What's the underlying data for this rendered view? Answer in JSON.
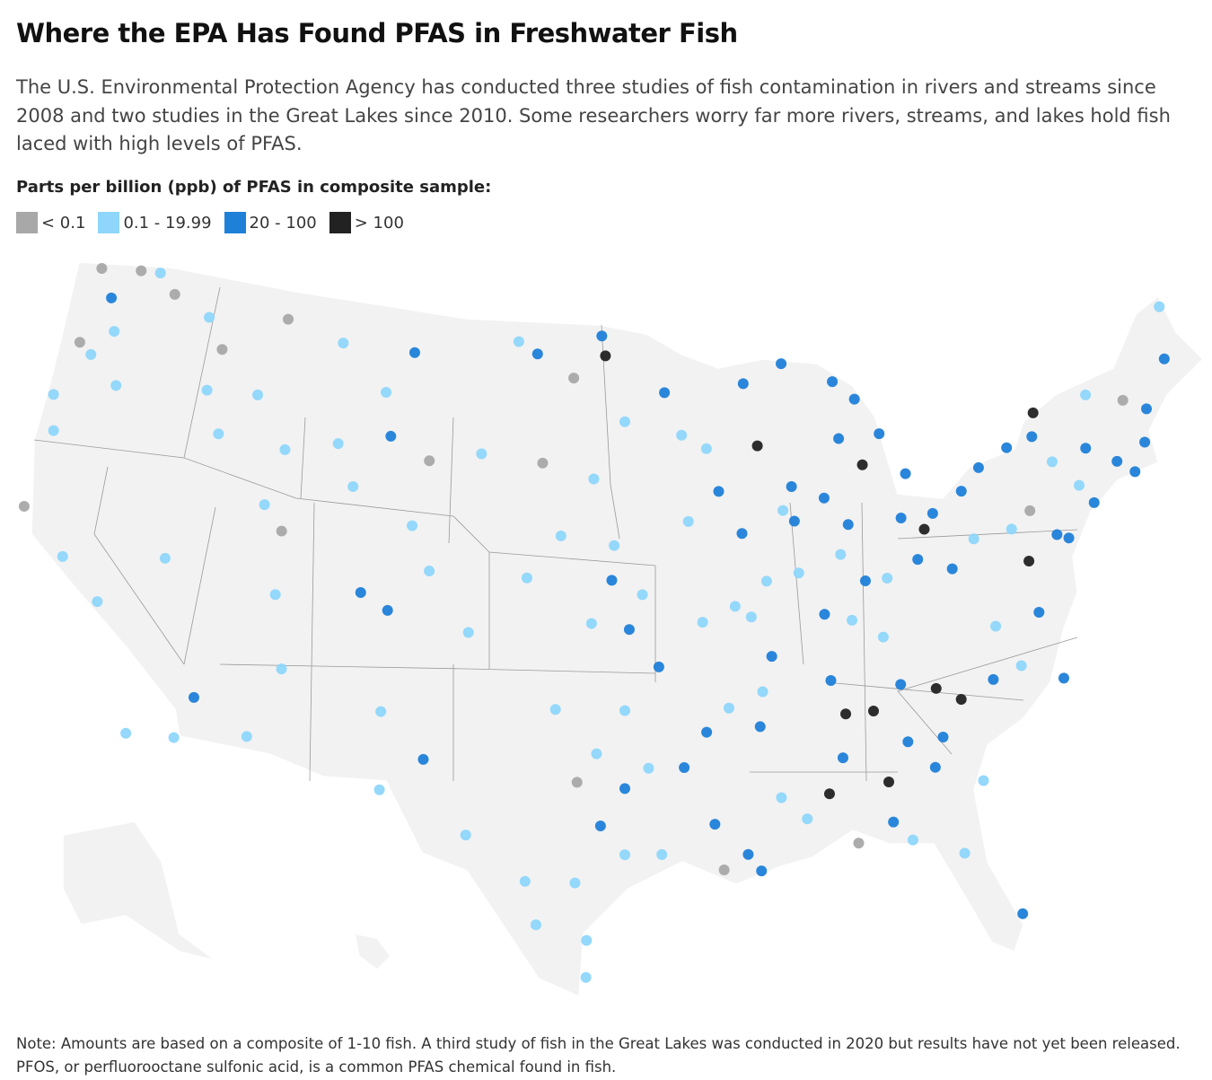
{
  "header": {
    "title": "Where the EPA Has Found PFAS in Freshwater Fish",
    "subtitle": "The U.S. Environmental Protection Agency has conducted three studies of fish contamination in rivers and streams since 2008 and two studies in the Great Lakes since 2010. Some researchers worry far more rivers, streams, and lakes hold fish laced with high levels of PFAS."
  },
  "legend": {
    "title": "Parts per billion (ppb) of PFAS in composite sample:",
    "items": [
      {
        "label": "< 0.1",
        "color": "#a8a8a8"
      },
      {
        "label": "0.1 - 19.99",
        "color": "#8ed6fb"
      },
      {
        "label": "20 - 100",
        "color": "#1f80d8"
      },
      {
        "label": "> 100",
        "color": "#222222"
      }
    ]
  },
  "map": {
    "sites": [
      {
        "lon": -123.5,
        "lat": 48.2,
        "level": 0
      },
      {
        "lon": -122.6,
        "lat": 47.3,
        "level": 2
      },
      {
        "lon": -121.5,
        "lat": 48.5,
        "level": 0
      },
      {
        "lon": -120.5,
        "lat": 48.6,
        "level": 1
      },
      {
        "lon": -119.5,
        "lat": 48.0,
        "level": 0
      },
      {
        "lon": -122,
        "lat": 46.2,
        "level": 1
      },
      {
        "lon": -123.5,
        "lat": 45.5,
        "level": 0
      },
      {
        "lon": -122.8,
        "lat": 45.2,
        "level": 1
      },
      {
        "lon": -124,
        "lat": 43.5,
        "level": 1
      },
      {
        "lon": -121.2,
        "lat": 44.4,
        "level": 1
      },
      {
        "lon": -123.5,
        "lat": 42.3,
        "level": 1
      },
      {
        "lon": -117.5,
        "lat": 47.5,
        "level": 1
      },
      {
        "lon": -116.5,
        "lat": 46.5,
        "level": 0
      },
      {
        "lon": -116.8,
        "lat": 45.0,
        "level": 1
      },
      {
        "lon": -114.3,
        "lat": 45.2,
        "level": 1
      },
      {
        "lon": -115.8,
        "lat": 43.6,
        "level": 1
      },
      {
        "lon": -112.5,
        "lat": 43.5,
        "level": 1
      },
      {
        "lon": -123.8,
        "lat": 39.5,
        "level": 0
      },
      {
        "lon": -121.5,
        "lat": 38.2,
        "level": 1
      },
      {
        "lon": -119.5,
        "lat": 37,
        "level": 1
      },
      {
        "lon": -117,
        "lat": 32.8,
        "level": 1
      },
      {
        "lon": -115,
        "lat": 33,
        "level": 1
      },
      {
        "lon": -117,
        "lat": 39,
        "level": 1
      },
      {
        "lon": -112,
        "lat": 40.7,
        "level": 0
      },
      {
        "lon": -111.8,
        "lat": 38.5,
        "level": 1
      },
      {
        "lon": -111,
        "lat": 36,
        "level": 1
      },
      {
        "lon": -112,
        "lat": 33.5,
        "level": 1
      },
      {
        "lon": -114.5,
        "lat": 34.5,
        "level": 2
      },
      {
        "lon": -113,
        "lat": 41.5,
        "level": 1
      },
      {
        "lon": -113.5,
        "lat": 48,
        "level": 0
      },
      {
        "lon": -110.5,
        "lat": 47.5,
        "level": 1
      },
      {
        "lon": -108,
        "lat": 46,
        "level": 1
      },
      {
        "lon": -106.8,
        "lat": 47.5,
        "level": 2
      },
      {
        "lon": -107.5,
        "lat": 44.5,
        "level": 2
      },
      {
        "lon": -105.5,
        "lat": 43.8,
        "level": 0
      },
      {
        "lon": -109,
        "lat": 42.6,
        "level": 1
      },
      {
        "lon": -106,
        "lat": 41.5,
        "level": 1
      },
      {
        "lon": -110,
        "lat": 44,
        "level": 1
      },
      {
        "lon": -108,
        "lat": 39,
        "level": 2
      },
      {
        "lon": -105,
        "lat": 40,
        "level": 1
      },
      {
        "lon": -106.7,
        "lat": 38.5,
        "level": 2
      },
      {
        "lon": -106.5,
        "lat": 35,
        "level": 1
      },
      {
        "lon": -104.5,
        "lat": 33.5,
        "level": 2
      },
      {
        "lon": -106.2,
        "lat": 32.3,
        "level": 1
      },
      {
        "lon": -103,
        "lat": 38,
        "level": 1
      },
      {
        "lon": -101.5,
        "lat": 48.2,
        "level": 1
      },
      {
        "lon": -100.5,
        "lat": 47.8,
        "level": 2
      },
      {
        "lon": -98.6,
        "lat": 47,
        "level": 0
      },
      {
        "lon": -97,
        "lat": 47.8,
        "level": 3
      },
      {
        "lon": -97.2,
        "lat": 48.5,
        "level": 2
      },
      {
        "lon": -100,
        "lat": 44,
        "level": 0
      },
      {
        "lon": -97.5,
        "lat": 43.5,
        "level": 1
      },
      {
        "lon": -103,
        "lat": 44.2,
        "level": 1
      },
      {
        "lon": -99,
        "lat": 41.5,
        "level": 1
      },
      {
        "lon": -96.5,
        "lat": 41.2,
        "level": 1
      },
      {
        "lon": -100.5,
        "lat": 40,
        "level": 1
      },
      {
        "lon": -97.5,
        "lat": 38.5,
        "level": 1
      },
      {
        "lon": -95.8,
        "lat": 38.3,
        "level": 2
      },
      {
        "lon": -95.2,
        "lat": 39.5,
        "level": 1
      },
      {
        "lon": -96.6,
        "lat": 40,
        "level": 2
      },
      {
        "lon": -99,
        "lat": 35.5,
        "level": 1
      },
      {
        "lon": -96,
        "lat": 35.5,
        "level": 1
      },
      {
        "lon": -97.2,
        "lat": 34,
        "level": 1
      },
      {
        "lon": -98,
        "lat": 33,
        "level": 0
      },
      {
        "lon": -95,
        "lat": 33.5,
        "level": 1
      },
      {
        "lon": -97,
        "lat": 31.5,
        "level": 2
      },
      {
        "lon": -96,
        "lat": 30.5,
        "level": 1
      },
      {
        "lon": -98,
        "lat": 29.5,
        "level": 1
      },
      {
        "lon": -99.5,
        "lat": 28,
        "level": 1
      },
      {
        "lon": -97.5,
        "lat": 27.5,
        "level": 1
      },
      {
        "lon": -100,
        "lat": 29.5,
        "level": 1
      },
      {
        "lon": -102.5,
        "lat": 31,
        "level": 1
      },
      {
        "lon": -96,
        "lat": 32.8,
        "level": 2
      },
      {
        "lon": -94.5,
        "lat": 30.5,
        "level": 1
      },
      {
        "lon": -97.5,
        "lat": 26.2,
        "level": 1
      },
      {
        "lon": -92.5,
        "lat": 34.7,
        "level": 2
      },
      {
        "lon": -93.5,
        "lat": 33.5,
        "level": 2
      },
      {
        "lon": -91.5,
        "lat": 35.5,
        "level": 1
      },
      {
        "lon": -92.3,
        "lat": 31.5,
        "level": 2
      },
      {
        "lon": -91,
        "lat": 30.4,
        "level": 2
      },
      {
        "lon": -90.5,
        "lat": 29.8,
        "level": 2
      },
      {
        "lon": -92,
        "lat": 29.9,
        "level": 0
      },
      {
        "lon": -89.5,
        "lat": 32.3,
        "level": 1
      },
      {
        "lon": -90.2,
        "lat": 34.8,
        "level": 2
      },
      {
        "lon": -90,
        "lat": 36,
        "level": 1
      },
      {
        "lon": -92.5,
        "lat": 38.5,
        "level": 1
      },
      {
        "lon": -90.3,
        "lat": 38.6,
        "level": 1
      },
      {
        "lon": -89.5,
        "lat": 37.2,
        "level": 2
      },
      {
        "lon": -94.5,
        "lat": 37,
        "level": 2
      },
      {
        "lon": -91,
        "lat": 39,
        "level": 1
      },
      {
        "lon": -88.5,
        "lat": 31.5,
        "level": 1
      },
      {
        "lon": -93.2,
        "lat": 45,
        "level": 1
      },
      {
        "lon": -92,
        "lat": 44.5,
        "level": 1
      },
      {
        "lon": -94,
        "lat": 46.5,
        "level": 2
      },
      {
        "lon": -96,
        "lat": 45.5,
        "level": 1
      },
      {
        "lon": -91.5,
        "lat": 43,
        "level": 2
      },
      {
        "lon": -93,
        "lat": 42,
        "level": 1
      },
      {
        "lon": -90.5,
        "lat": 41.5,
        "level": 2
      },
      {
        "lon": -88,
        "lat": 43,
        "level": 2
      },
      {
        "lon": -89.5,
        "lat": 44.5,
        "level": 3
      },
      {
        "lon": -88.5,
        "lat": 42.2,
        "level": 1
      },
      {
        "lon": -88,
        "lat": 40,
        "level": 1
      },
      {
        "lon": -89.5,
        "lat": 39.8,
        "level": 1
      },
      {
        "lon": -88,
        "lat": 41.8,
        "level": 2
      },
      {
        "lon": -90,
        "lat": 46.7,
        "level": 2
      },
      {
        "lon": -88,
        "lat": 47.3,
        "level": 2
      },
      {
        "lon": -85.5,
        "lat": 46.5,
        "level": 2
      },
      {
        "lon": -84.5,
        "lat": 45.8,
        "level": 2
      },
      {
        "lon": -85.5,
        "lat": 44.5,
        "level": 2
      },
      {
        "lon": -84.5,
        "lat": 43.5,
        "level": 3
      },
      {
        "lon": -83.5,
        "lat": 44.5,
        "level": 2
      },
      {
        "lon": -82.5,
        "lat": 43,
        "level": 2
      },
      {
        "lon": -86.5,
        "lat": 42.5,
        "level": 2
      },
      {
        "lon": -85.5,
        "lat": 41.5,
        "level": 2
      },
      {
        "lon": -86,
        "lat": 40.5,
        "level": 1
      },
      {
        "lon": -87,
        "lat": 38.5,
        "level": 2
      },
      {
        "lon": -85,
        "lat": 39.5,
        "level": 2
      },
      {
        "lon": -83,
        "lat": 41.5,
        "level": 2
      },
      {
        "lon": -82,
        "lat": 41,
        "level": 3
      },
      {
        "lon": -81.5,
        "lat": 41.5,
        "level": 2
      },
      {
        "lon": -82.5,
        "lat": 40,
        "level": 2
      },
      {
        "lon": -84,
        "lat": 39.5,
        "level": 1
      },
      {
        "lon": -81,
        "lat": 39.5,
        "level": 2
      },
      {
        "lon": -80,
        "lat": 42.1,
        "level": 2
      },
      {
        "lon": -79,
        "lat": 42.8,
        "level": 2
      },
      {
        "lon": -77.5,
        "lat": 43.3,
        "level": 2
      },
      {
        "lon": -76.2,
        "lat": 43.5,
        "level": 2
      },
      {
        "lon": -75.9,
        "lat": 44.3,
        "level": 3
      },
      {
        "lon": -75.5,
        "lat": 42.5,
        "level": 1
      },
      {
        "lon": -73.8,
        "lat": 42.7,
        "level": 2
      },
      {
        "lon": -74.5,
        "lat": 41.5,
        "level": 1
      },
      {
        "lon": -77,
        "lat": 41,
        "level": 0
      },
      {
        "lon": -76,
        "lat": 40,
        "level": 2
      },
      {
        "lon": -78,
        "lat": 40.5,
        "level": 1
      },
      {
        "lon": -79.8,
        "lat": 40.4,
        "level": 1
      },
      {
        "lon": -77.5,
        "lat": 39.3,
        "level": 3
      },
      {
        "lon": -75.5,
        "lat": 39.8,
        "level": 2
      },
      {
        "lon": -72.5,
        "lat": 42,
        "level": 2
      },
      {
        "lon": -71,
        "lat": 42.4,
        "level": 2
      },
      {
        "lon": -73.2,
        "lat": 44.5,
        "level": 1
      },
      {
        "lon": -71.5,
        "lat": 44,
        "level": 0
      },
      {
        "lon": -69,
        "lat": 45,
        "level": 2
      },
      {
        "lon": -68.5,
        "lat": 46.8,
        "level": 1
      },
      {
        "lon": -70.5,
        "lat": 43.5,
        "level": 2
      },
      {
        "lon": -74,
        "lat": 40.8,
        "level": 2
      },
      {
        "lon": -71.8,
        "lat": 41.5,
        "level": 2
      },
      {
        "lon": -84.5,
        "lat": 37.5,
        "level": 1
      },
      {
        "lon": -85.8,
        "lat": 38.2,
        "level": 1
      },
      {
        "lon": -87,
        "lat": 36.2,
        "level": 2
      },
      {
        "lon": -86.5,
        "lat": 35,
        "level": 3
      },
      {
        "lon": -85.3,
        "lat": 35,
        "level": 3
      },
      {
        "lon": -84,
        "lat": 35.8,
        "level": 2
      },
      {
        "lon": -82.5,
        "lat": 35.5,
        "level": 3
      },
      {
        "lon": -81.5,
        "lat": 35,
        "level": 3
      },
      {
        "lon": -80,
        "lat": 35.5,
        "level": 2
      },
      {
        "lon": -78.7,
        "lat": 35.8,
        "level": 1
      },
      {
        "lon": -77,
        "lat": 35.1,
        "level": 2
      },
      {
        "lon": -79.5,
        "lat": 37.3,
        "level": 1
      },
      {
        "lon": -77.5,
        "lat": 37.5,
        "level": 2
      },
      {
        "lon": -86.8,
        "lat": 33.5,
        "level": 2
      },
      {
        "lon": -87.5,
        "lat": 32.3,
        "level": 3
      },
      {
        "lon": -85,
        "lat": 32.5,
        "level": 3
      },
      {
        "lon": -84,
        "lat": 33.8,
        "level": 2
      },
      {
        "lon": -83,
        "lat": 32.8,
        "level": 2
      },
      {
        "lon": -81.1,
        "lat": 32.1,
        "level": 1
      },
      {
        "lon": -85,
        "lat": 31.1,
        "level": 2
      },
      {
        "lon": -82.3,
        "lat": 29.7,
        "level": 1
      },
      {
        "lon": -84.3,
        "lat": 30.4,
        "level": 1
      },
      {
        "lon": -80.4,
        "lat": 27.3,
        "level": 2
      },
      {
        "lon": -82.5,
        "lat": 33.8,
        "level": 2
      },
      {
        "lon": -86.5,
        "lat": 30.5,
        "level": 0
      }
    ]
  },
  "notes": [
    "Note: Amounts are based on a composite of 1-10 fish. A third study of fish in the Great Lakes was conducted in 2020 but results have not yet been released.",
    "PFOS, or perfluorooctane sulfonic acid, is a common PFAS chemical found in fish."
  ]
}
